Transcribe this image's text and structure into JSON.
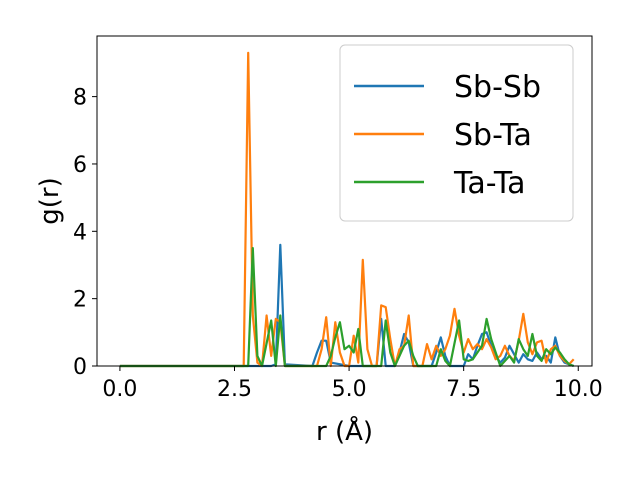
{
  "chart_data": {
    "type": "line",
    "title": "",
    "xlabel": "r (Å)",
    "ylabel": "g(r)",
    "xlim": [
      -0.5,
      10.3
    ],
    "ylim": [
      0,
      9.8
    ],
    "xticks": [
      0.0,
      2.5,
      5.0,
      7.5,
      10.0
    ],
    "xtick_labels": [
      "0.0",
      "2.5",
      "5.0",
      "7.5",
      "10.0"
    ],
    "yticks": [
      0,
      2,
      4,
      6,
      8
    ],
    "ytick_labels": [
      "0",
      "2",
      "4",
      "6",
      "8"
    ],
    "grid": false,
    "legend_position": "top-right",
    "series": [
      {
        "name": "Sb-Sb",
        "color": "#1f77b4",
        "points": [
          [
            0,
            0
          ],
          [
            3.3,
            0
          ],
          [
            3.4,
            0.05
          ],
          [
            3.5,
            3.6
          ],
          [
            3.6,
            0.05
          ],
          [
            4.2,
            0
          ],
          [
            4.3,
            0.4
          ],
          [
            4.4,
            0.75
          ],
          [
            4.5,
            0.75
          ],
          [
            4.6,
            0.1
          ],
          [
            5.0,
            0
          ],
          [
            5.6,
            0
          ],
          [
            5.7,
            1.4
          ],
          [
            5.8,
            0
          ],
          [
            6.0,
            0
          ],
          [
            6.1,
            0.4
          ],
          [
            6.2,
            0.95
          ],
          [
            6.3,
            0.7
          ],
          [
            6.4,
            0
          ],
          [
            6.8,
            0
          ],
          [
            6.9,
            0.4
          ],
          [
            7.0,
            0.85
          ],
          [
            7.1,
            0.3
          ],
          [
            7.2,
            0
          ],
          [
            7.5,
            0
          ],
          [
            7.6,
            0.35
          ],
          [
            7.7,
            0.2
          ],
          [
            7.8,
            0.6
          ],
          [
            7.9,
            0.95
          ],
          [
            8.0,
            1.0
          ],
          [
            8.1,
            0.6
          ],
          [
            8.2,
            0.3
          ],
          [
            8.3,
            0.1
          ],
          [
            8.4,
            0.25
          ],
          [
            8.5,
            0.6
          ],
          [
            8.6,
            0.35
          ],
          [
            8.7,
            0.1
          ],
          [
            8.8,
            0.35
          ],
          [
            8.9,
            0.2
          ],
          [
            9.0,
            0.15
          ],
          [
            9.1,
            0.4
          ],
          [
            9.2,
            0.2
          ],
          [
            9.3,
            0.3
          ],
          [
            9.4,
            0.1
          ],
          [
            9.5,
            0.85
          ],
          [
            9.6,
            0.3
          ],
          [
            9.7,
            0.1
          ],
          [
            9.8,
            0.05
          ],
          [
            9.9,
            0
          ]
        ]
      },
      {
        "name": "Sb-Ta",
        "color": "#ff7f0e",
        "points": [
          [
            0,
            0
          ],
          [
            2.7,
            0
          ],
          [
            2.8,
            9.3
          ],
          [
            2.9,
            1.5
          ],
          [
            3.0,
            0.1
          ],
          [
            3.1,
            0
          ],
          [
            3.2,
            1.5
          ],
          [
            3.3,
            0.3
          ],
          [
            3.4,
            1.4
          ],
          [
            3.5,
            1.3
          ],
          [
            3.6,
            0
          ],
          [
            4.3,
            0
          ],
          [
            4.4,
            0.5
          ],
          [
            4.5,
            1.45
          ],
          [
            4.6,
            0
          ],
          [
            4.7,
            1.3
          ],
          [
            4.8,
            0.4
          ],
          [
            4.9,
            0
          ],
          [
            5.0,
            0
          ],
          [
            5.1,
            0.9
          ],
          [
            5.2,
            0.1
          ],
          [
            5.3,
            3.15
          ],
          [
            5.4,
            0.5
          ],
          [
            5.5,
            0
          ],
          [
            5.6,
            0
          ],
          [
            5.7,
            1.8
          ],
          [
            5.8,
            1.75
          ],
          [
            5.9,
            0.8
          ],
          [
            6.0,
            0
          ],
          [
            6.1,
            0.5
          ],
          [
            6.2,
            0.6
          ],
          [
            6.3,
            1.5
          ],
          [
            6.4,
            0
          ],
          [
            6.6,
            0
          ],
          [
            6.7,
            0.65
          ],
          [
            6.8,
            0.2
          ],
          [
            6.9,
            0.6
          ],
          [
            7.0,
            0.3
          ],
          [
            7.1,
            0.5
          ],
          [
            7.2,
            0.9
          ],
          [
            7.3,
            1.7
          ],
          [
            7.4,
            0.9
          ],
          [
            7.5,
            0.4
          ],
          [
            7.6,
            0.8
          ],
          [
            7.7,
            0.5
          ],
          [
            7.8,
            0.65
          ],
          [
            7.9,
            0.5
          ],
          [
            8.0,
            0.8
          ],
          [
            8.1,
            0.55
          ],
          [
            8.2,
            0.2
          ],
          [
            8.3,
            0.3
          ],
          [
            8.4,
            0.6
          ],
          [
            8.5,
            0.3
          ],
          [
            8.6,
            0.15
          ],
          [
            8.7,
            0.75
          ],
          [
            8.8,
            1.55
          ],
          [
            8.9,
            0.7
          ],
          [
            9.0,
            0.35
          ],
          [
            9.1,
            0.7
          ],
          [
            9.2,
            0.75
          ],
          [
            9.3,
            0.1
          ],
          [
            9.4,
            0.5
          ],
          [
            9.5,
            0.6
          ],
          [
            9.6,
            0.3
          ],
          [
            9.7,
            0.15
          ],
          [
            9.8,
            0.05
          ],
          [
            9.9,
            0.2
          ]
        ]
      },
      {
        "name": "Ta-Ta",
        "color": "#2ca02c",
        "points": [
          [
            0,
            0
          ],
          [
            2.8,
            0
          ],
          [
            2.9,
            3.5
          ],
          [
            3.0,
            0.3
          ],
          [
            3.1,
            0
          ],
          [
            3.3,
            1.35
          ],
          [
            3.4,
            0
          ],
          [
            3.5,
            1.5
          ],
          [
            3.6,
            0
          ],
          [
            4.5,
            0
          ],
          [
            4.6,
            0.3
          ],
          [
            4.7,
            0.85
          ],
          [
            4.8,
            1.3
          ],
          [
            4.9,
            0.5
          ],
          [
            5.0,
            0.6
          ],
          [
            5.1,
            0.4
          ],
          [
            5.2,
            1.1
          ],
          [
            5.3,
            0
          ],
          [
            5.7,
            0
          ],
          [
            5.8,
            1.35
          ],
          [
            5.9,
            0.4
          ],
          [
            6.0,
            0
          ],
          [
            6.2,
            0.6
          ],
          [
            6.3,
            0.75
          ],
          [
            6.4,
            0.3
          ],
          [
            6.5,
            0
          ],
          [
            6.9,
            0
          ],
          [
            7.0,
            0.5
          ],
          [
            7.1,
            0.15
          ],
          [
            7.2,
            0
          ],
          [
            7.4,
            1.35
          ],
          [
            7.5,
            0.2
          ],
          [
            7.6,
            0.15
          ],
          [
            7.7,
            0.2
          ],
          [
            7.8,
            0.4
          ],
          [
            7.9,
            0.6
          ],
          [
            8.0,
            1.4
          ],
          [
            8.1,
            0.8
          ],
          [
            8.2,
            0.4
          ],
          [
            8.3,
            0
          ],
          [
            8.5,
            0.3
          ],
          [
            8.6,
            0.1
          ],
          [
            8.7,
            0.8
          ],
          [
            8.8,
            0.5
          ],
          [
            8.9,
            0.3
          ],
          [
            9.0,
            0.95
          ],
          [
            9.1,
            0.3
          ],
          [
            9.2,
            0.15
          ],
          [
            9.3,
            0.5
          ],
          [
            9.4,
            0.35
          ],
          [
            9.5,
            0.55
          ],
          [
            9.6,
            0.4
          ],
          [
            9.7,
            0.2
          ],
          [
            9.8,
            0.05
          ],
          [
            9.9,
            0
          ]
        ]
      }
    ]
  }
}
